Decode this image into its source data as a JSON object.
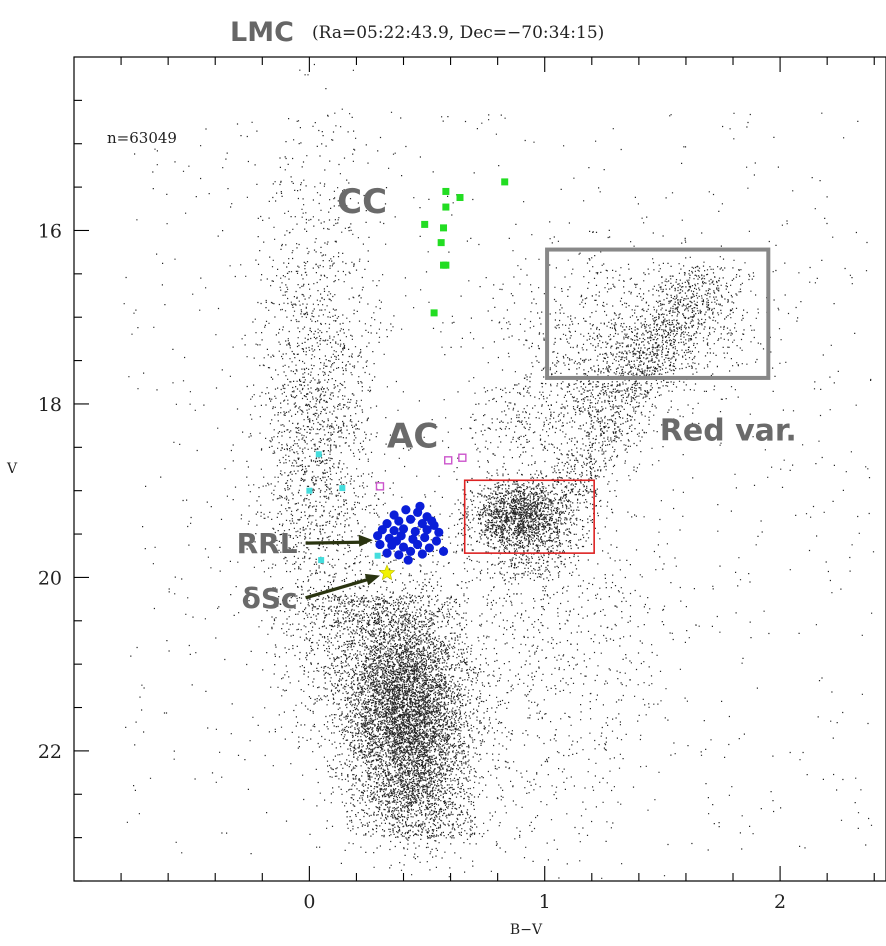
{
  "chart_data": {
    "type": "scatter",
    "title": "LMC",
    "subtitle": "(Ra=05:22:43.9, Dec=−70:34:15)",
    "xlabel": "B−V",
    "ylabel": "V",
    "xlim": [
      -1.0,
      2.45
    ],
    "ylim": [
      23.5,
      14.0
    ],
    "y_inverted": true,
    "x_ticks": [
      0,
      1,
      2
    ],
    "y_ticks": [
      16,
      18,
      20,
      22
    ],
    "count_label": "n=63049",
    "colors": {
      "field": "#000000",
      "cc": "#22dd22",
      "rrl": "#0a1ed8",
      "ac": "#cc55cc",
      "cyan": "#44dddd",
      "dsc": "#f2f200",
      "red_box": "#dd2222",
      "gray_box": "#888888",
      "arrow": "#2a3410"
    },
    "series": [
      {
        "name": "CC",
        "marker": "square",
        "points": [
          [
            0.83,
            15.44
          ],
          [
            0.58,
            15.55
          ],
          [
            0.64,
            15.62
          ],
          [
            0.58,
            15.73
          ],
          [
            0.49,
            15.93
          ],
          [
            0.57,
            15.97
          ],
          [
            0.56,
            16.14
          ],
          [
            0.57,
            16.4
          ],
          [
            0.58,
            16.4
          ],
          [
            0.53,
            16.95
          ]
        ]
      },
      {
        "name": "AC",
        "marker": "open-square",
        "points": [
          [
            0.3,
            18.95
          ],
          [
            0.59,
            18.65
          ],
          [
            0.65,
            18.62
          ]
        ]
      },
      {
        "name": "RRL",
        "marker": "circle",
        "points": [
          [
            0.36,
            19.28
          ],
          [
            0.41,
            19.22
          ],
          [
            0.46,
            19.25
          ],
          [
            0.5,
            19.3
          ],
          [
            0.33,
            19.38
          ],
          [
            0.38,
            19.35
          ],
          [
            0.43,
            19.33
          ],
          [
            0.48,
            19.38
          ],
          [
            0.53,
            19.4
          ],
          [
            0.31,
            19.45
          ],
          [
            0.36,
            19.46
          ],
          [
            0.4,
            19.44
          ],
          [
            0.45,
            19.47
          ],
          [
            0.5,
            19.45
          ],
          [
            0.55,
            19.48
          ],
          [
            0.34,
            19.55
          ],
          [
            0.39,
            19.52
          ],
          [
            0.44,
            19.56
          ],
          [
            0.49,
            19.54
          ],
          [
            0.54,
            19.58
          ],
          [
            0.3,
            19.62
          ],
          [
            0.35,
            19.63
          ],
          [
            0.4,
            19.65
          ],
          [
            0.46,
            19.62
          ],
          [
            0.51,
            19.66
          ],
          [
            0.33,
            19.72
          ],
          [
            0.38,
            19.74
          ],
          [
            0.43,
            19.7
          ],
          [
            0.48,
            19.73
          ],
          [
            0.57,
            19.7
          ],
          [
            0.42,
            19.8
          ],
          [
            0.47,
            19.18
          ],
          [
            0.37,
            19.58
          ],
          [
            0.52,
            19.35
          ],
          [
            0.29,
            19.52
          ]
        ]
      },
      {
        "name": "",
        "marker": "small-square",
        "points": [
          [
            0.04,
            18.58
          ],
          [
            0.0,
            19.0
          ],
          [
            0.14,
            18.97
          ],
          [
            0.05,
            19.8
          ],
          [
            0.29,
            19.75
          ]
        ]
      },
      {
        "name": "δSc",
        "marker": "star",
        "points": [
          [
            0.33,
            19.95
          ]
        ]
      }
    ],
    "boxes": [
      {
        "label": "",
        "color": "red",
        "x": [
          0.66,
          1.21
        ],
        "y": [
          18.88,
          19.72
        ]
      },
      {
        "label": "Red var.",
        "color": "gray",
        "x": [
          1.01,
          1.95
        ],
        "y": [
          16.22,
          17.7
        ]
      }
    ],
    "annotations": [
      {
        "text": "CC",
        "at": [
          0.33,
          15.8
        ]
      },
      {
        "text": "AC",
        "at": [
          0.33,
          18.5
        ]
      },
      {
        "text": "Red var.",
        "at": [
          1.78,
          18.42
        ]
      },
      {
        "text": "RRL",
        "at": [
          -0.05,
          19.72
        ],
        "arrow_to": [
          0.27,
          19.57
        ]
      },
      {
        "text": "δSc",
        "at": [
          -0.05,
          20.35
        ],
        "arrow_to": [
          0.3,
          19.98
        ]
      }
    ]
  }
}
